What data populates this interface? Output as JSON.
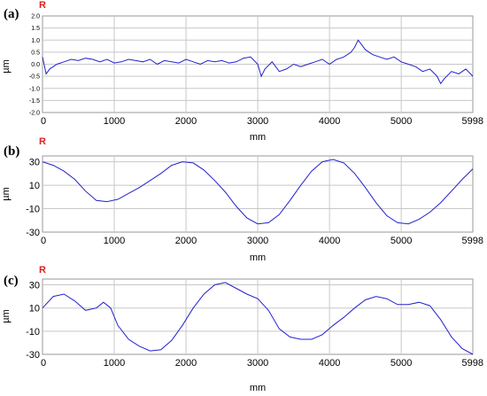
{
  "chart_data": [
    {
      "type": "line",
      "panel": "(a)",
      "marker": "R",
      "xlabel": "mm",
      "ylabel": "µm",
      "xlim": [
        0,
        5998
      ],
      "ylim": [
        -2.0,
        2.0
      ],
      "xticks": [
        0,
        1000,
        2000,
        3000,
        4000,
        5000,
        5998
      ],
      "yticks": [
        2.0,
        1.5,
        1.0,
        0.5,
        0.0,
        -0.5,
        -1.0,
        -1.5,
        -2.0
      ],
      "ytick_labels": [
        "2.0",
        "1.5",
        "1.0",
        "0.5",
        "0.0",
        "-0.5",
        "-1.0",
        "-1.5",
        "-2.0"
      ],
      "grid": true,
      "series": [
        {
          "x": [
            0,
            50,
            100,
            200,
            300,
            400,
            500,
            600,
            700,
            800,
            900,
            1000,
            1100,
            1200,
            1300,
            1400,
            1500,
            1600,
            1700,
            1800,
            1900,
            2000,
            2100,
            2200,
            2300,
            2400,
            2500,
            2600,
            2700,
            2800,
            2900,
            3000,
            3050,
            3100,
            3200,
            3300,
            3400,
            3500,
            3600,
            3700,
            3800,
            3900,
            4000,
            4100,
            4200,
            4300,
            4350,
            4400,
            4450,
            4500,
            4600,
            4700,
            4800,
            4900,
            5000,
            5100,
            5200,
            5300,
            5400,
            5500,
            5550,
            5600,
            5700,
            5800,
            5900,
            5998
          ],
          "y": [
            0.3,
            -0.4,
            -0.2,
            0.0,
            0.1,
            0.2,
            0.15,
            0.25,
            0.2,
            0.1,
            0.2,
            0.05,
            0.1,
            0.2,
            0.15,
            0.1,
            0.2,
            0.0,
            0.15,
            0.1,
            0.05,
            0.2,
            0.1,
            0.0,
            0.15,
            0.1,
            0.15,
            0.05,
            0.1,
            0.25,
            0.3,
            0.0,
            -0.5,
            -0.2,
            0.1,
            -0.3,
            -0.2,
            0.0,
            -0.1,
            0.0,
            0.1,
            0.2,
            0.0,
            0.2,
            0.3,
            0.5,
            0.7,
            1.0,
            0.8,
            0.6,
            0.4,
            0.3,
            0.2,
            0.3,
            0.1,
            0.0,
            -0.1,
            -0.3,
            -0.2,
            -0.5,
            -0.8,
            -0.6,
            -0.3,
            -0.4,
            -0.2,
            -0.5
          ]
        }
      ]
    },
    {
      "type": "line",
      "panel": "(b)",
      "marker": "R",
      "xlabel": "mm",
      "ylabel": "µm",
      "xlim": [
        0,
        5998
      ],
      "ylim": [
        -30,
        35
      ],
      "xticks": [
        0,
        1000,
        2000,
        3000,
        4000,
        5000,
        5998
      ],
      "yticks": [
        30,
        10,
        -10,
        -30
      ],
      "ytick_labels": [
        "30",
        "10",
        "-10",
        "-30"
      ],
      "grid": true,
      "series": [
        {
          "x": [
            0,
            150,
            300,
            450,
            600,
            750,
            900,
            1050,
            1200,
            1350,
            1500,
            1650,
            1800,
            1950,
            2100,
            2250,
            2400,
            2550,
            2700,
            2850,
            3000,
            3150,
            3300,
            3450,
            3600,
            3750,
            3900,
            4050,
            4200,
            4350,
            4500,
            4650,
            4800,
            4950,
            5100,
            5250,
            5400,
            5550,
            5700,
            5850,
            5998
          ],
          "y": [
            30,
            27,
            22,
            15,
            5,
            -3,
            -4,
            -2,
            3,
            8,
            14,
            20,
            27,
            30,
            29,
            23,
            14,
            4,
            -8,
            -18,
            -23,
            -22,
            -15,
            -3,
            10,
            22,
            30,
            32,
            29,
            20,
            8,
            -5,
            -16,
            -22,
            -23,
            -19,
            -13,
            -5,
            5,
            15,
            24
          ]
        }
      ]
    },
    {
      "type": "line",
      "panel": "(c)",
      "marker": "R",
      "xlabel": "mm",
      "ylabel": "µm",
      "xlim": [
        0,
        5998
      ],
      "ylim": [
        -30,
        35
      ],
      "xticks": [
        0,
        1000,
        2000,
        3000,
        4000,
        5000,
        5998
      ],
      "yticks": [
        30,
        10,
        -10,
        -30
      ],
      "ytick_labels": [
        "30",
        "10",
        "-10",
        "-30"
      ],
      "grid": true,
      "series": [
        {
          "x": [
            0,
            150,
            300,
            450,
            600,
            750,
            850,
            950,
            1050,
            1200,
            1350,
            1500,
            1650,
            1800,
            1950,
            2100,
            2250,
            2400,
            2550,
            2700,
            2850,
            3000,
            3150,
            3300,
            3450,
            3600,
            3750,
            3900,
            4050,
            4200,
            4350,
            4500,
            4650,
            4800,
            4950,
            5100,
            5250,
            5400,
            5550,
            5700,
            5850,
            5998
          ],
          "y": [
            10,
            20,
            22,
            16,
            8,
            10,
            15,
            10,
            -5,
            -17,
            -23,
            -27,
            -26,
            -18,
            -5,
            10,
            22,
            30,
            32,
            27,
            22,
            18,
            8,
            -8,
            -15,
            -17,
            -17,
            -13,
            -5,
            2,
            10,
            17,
            20,
            18,
            13,
            13,
            15,
            12,
            0,
            -15,
            -25,
            -30
          ]
        }
      ]
    }
  ]
}
